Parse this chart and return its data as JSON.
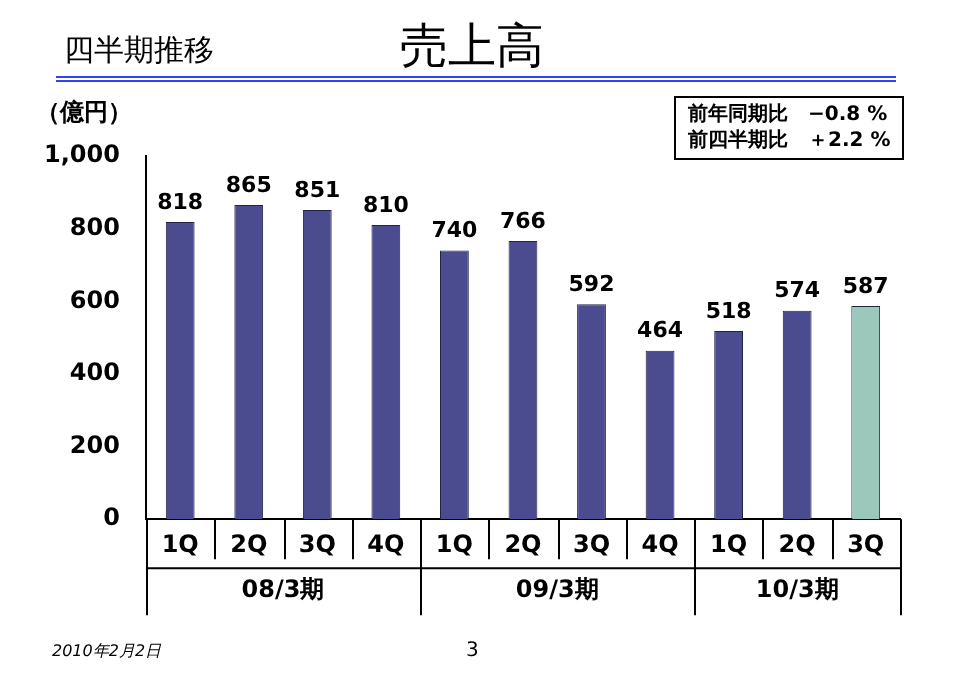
{
  "chart_data": {
    "type": "bar",
    "title": "売上高",
    "subtitle": "四半期推移",
    "ylabel": "（億円）",
    "categories": [
      "1Q",
      "2Q",
      "3Q",
      "4Q",
      "1Q",
      "2Q",
      "3Q",
      "4Q",
      "1Q",
      "2Q",
      "3Q"
    ],
    "values": [
      818,
      865,
      851,
      810,
      740,
      766,
      592,
      464,
      518,
      574,
      587
    ],
    "colors": [
      "#4b4b8f",
      "#4b4b8f",
      "#4b4b8f",
      "#4b4b8f",
      "#4b4b8f",
      "#4b4b8f",
      "#4b4b8f",
      "#4b4b8f",
      "#4b4b8f",
      "#4b4b8f",
      "#9cc8bc"
    ],
    "ylim": [
      0,
      1000
    ],
    "yticks": [
      0,
      200,
      400,
      600,
      800,
      {
        "value": 1000,
        "label": "1,000"
      }
    ],
    "grid": false,
    "legend": false,
    "data_labels": true,
    "annotations": [
      "08/3期",
      "09/3期",
      "10/3期",
      "前年同期比　−0.8 %",
      "前四半期比　＋2.2 %",
      "2010年2月2日",
      "3"
    ]
  }
}
